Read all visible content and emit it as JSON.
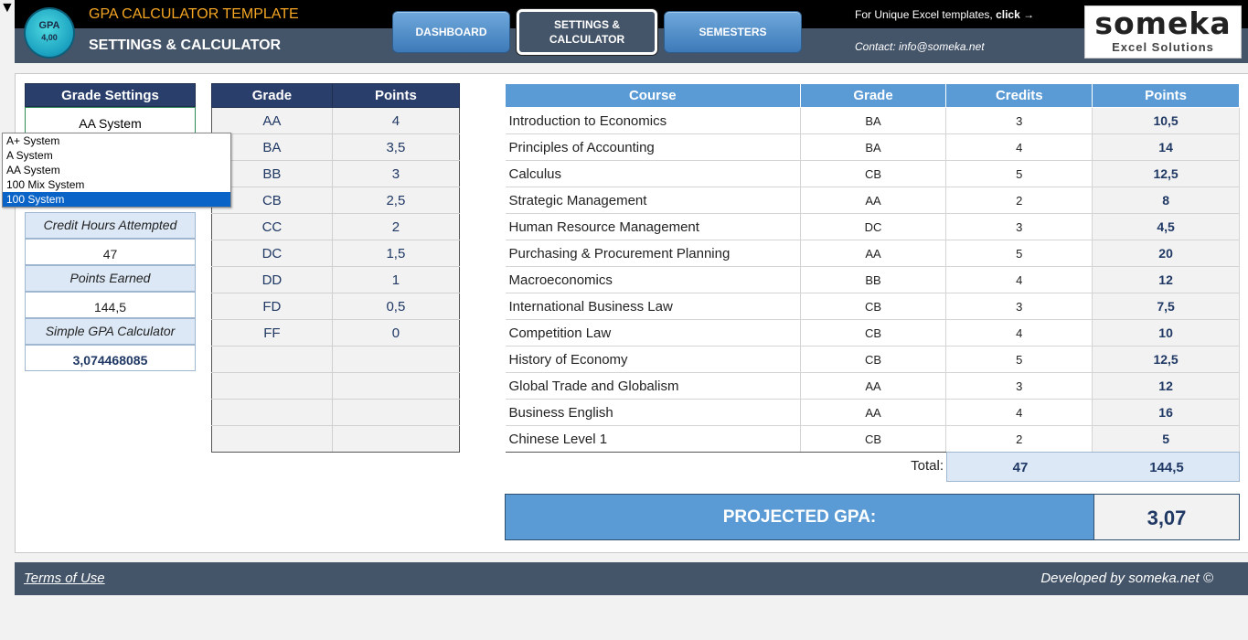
{
  "header": {
    "badge_line1": "GPA",
    "badge_line2": "4,00",
    "app_title": "GPA CALCULATOR TEMPLATE",
    "page_title": "SETTINGS & CALCULATOR",
    "nav": {
      "dashboard": "DASHBOARD",
      "settings_line1": "SETTINGS &",
      "settings_line2": "CALCULATOR",
      "semesters": "SEMESTERS"
    },
    "promo_text": "For Unique Excel templates, ",
    "promo_link": "click",
    "promo_arrow": "→",
    "contact": "Contact: info@someka.net",
    "logo_word": "someka",
    "logo_tagline": "Excel Solutions"
  },
  "grade_settings": {
    "header": "Grade Settings",
    "selected": "AA System",
    "dropdown_arrow": "▼",
    "options": [
      "A+ System",
      "A System",
      "AA System",
      "100 Mix System",
      "100 System"
    ],
    "highlighted_index": 4,
    "credit_label": "Credit Hours Attempted",
    "credit_value": "47",
    "points_label": "Points Earned",
    "points_value": "144,5",
    "gpa_label": "Simple GPA Calculator",
    "gpa_value": "3,074468085"
  },
  "grade_table": {
    "headers": [
      "Grade",
      "Points"
    ],
    "rows": [
      [
        "AA",
        "4"
      ],
      [
        "BA",
        "3,5"
      ],
      [
        "BB",
        "3"
      ],
      [
        "CB",
        "2,5"
      ],
      [
        "CC",
        "2"
      ],
      [
        "DC",
        "1,5"
      ],
      [
        "DD",
        "1"
      ],
      [
        "FD",
        "0,5"
      ],
      [
        "FF",
        "0"
      ],
      [
        "",
        ""
      ],
      [
        "",
        ""
      ],
      [
        "",
        ""
      ],
      [
        "",
        ""
      ]
    ]
  },
  "course_table": {
    "headers": [
      "Course",
      "Grade",
      "Credits",
      "Points"
    ],
    "rows": [
      [
        "Introduction to Economics",
        "BA",
        "3",
        "10,5"
      ],
      [
        "Principles of Accounting",
        "BA",
        "4",
        "14"
      ],
      [
        "Calculus",
        "CB",
        "5",
        "12,5"
      ],
      [
        "Strategic Management",
        "AA",
        "2",
        "8"
      ],
      [
        "Human Resource Management",
        "DC",
        "3",
        "4,5"
      ],
      [
        "Purchasing & Procurement Planning",
        "AA",
        "5",
        "20"
      ],
      [
        "Macroeconomics",
        "BB",
        "4",
        "12"
      ],
      [
        "International Business Law",
        "CB",
        "3",
        "7,5"
      ],
      [
        "Competition Law",
        "CB",
        "4",
        "10"
      ],
      [
        "History of Economy",
        "CB",
        "5",
        "12,5"
      ],
      [
        "Global Trade and Globalism",
        "AA",
        "3",
        "12"
      ],
      [
        "Business English",
        "AA",
        "4",
        "16"
      ],
      [
        "Chinese Level 1",
        "CB",
        "2",
        "5"
      ]
    ],
    "total_label": "Total:",
    "total_credits": "47",
    "total_points": "144,5"
  },
  "projected": {
    "label": "PROJECTED GPA:",
    "value": "3,07"
  },
  "footer": {
    "terms": "Terms of Use",
    "developer": "Developed by someka.net ©"
  }
}
